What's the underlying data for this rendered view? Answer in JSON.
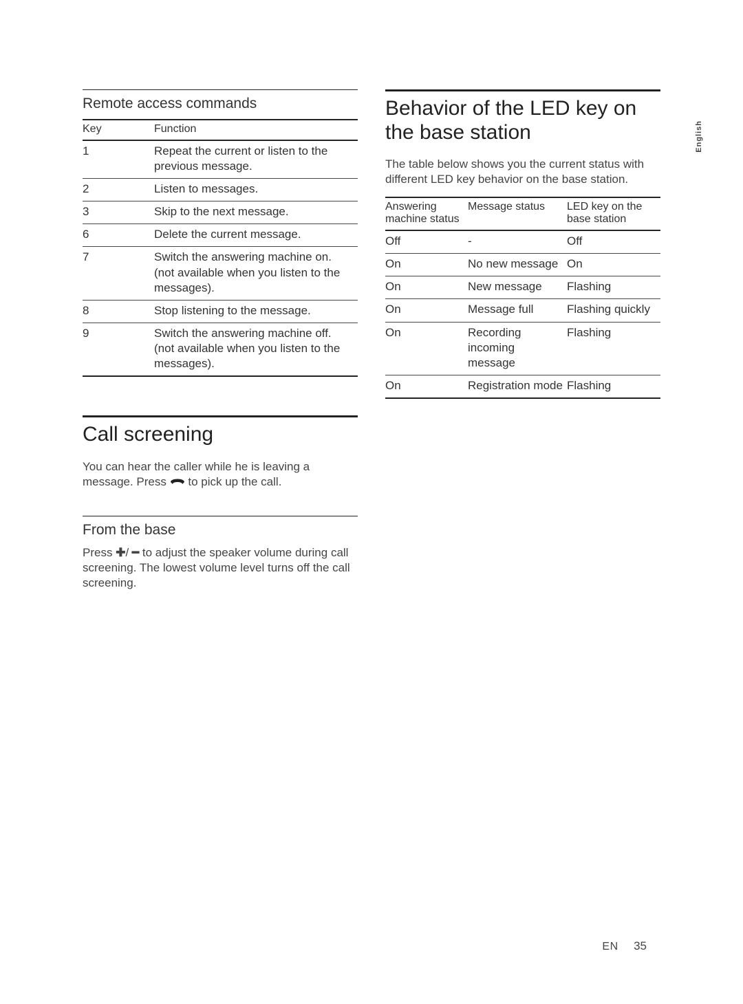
{
  "side_tab": "English",
  "left": {
    "remote_access": {
      "title": "Remote access commands",
      "columns": [
        "Key",
        "Function"
      ],
      "rows": [
        [
          "1",
          "Repeat the current or listen to the previous message."
        ],
        [
          "2",
          "Listen to messages."
        ],
        [
          "3",
          "Skip to the next message."
        ],
        [
          "6",
          "Delete the current message."
        ],
        [
          "7",
          "Switch the answering machine on.\n(not available when you listen to the messages)."
        ],
        [
          "8",
          "Stop listening to the message."
        ],
        [
          "9",
          "Switch the answering machine off.\n(not available when you listen to the messages)."
        ]
      ]
    },
    "call_screening": {
      "title": "Call screening",
      "intro_pre": "You can hear the caller while he is leaving a message. Press ",
      "intro_post": " to pick up the call.",
      "from_base": {
        "title": "From the base",
        "body_pre": "Press ",
        "body_mid": " to adjust the speaker volume during call screening. The lowest volume level turns off the call screening."
      }
    }
  },
  "right": {
    "led": {
      "title": "Behavior of the LED key on the base station",
      "intro": "The table below shows you the current status with different LED key behavior on the base station.",
      "columns": [
        "Answering machine status",
        "Message status",
        "LED key on the base station"
      ],
      "rows": [
        [
          "Off",
          "-",
          "Off"
        ],
        [
          "On",
          "No new message",
          "On"
        ],
        [
          "On",
          "New message",
          "Flashing"
        ],
        [
          "On",
          "Message full",
          "Flashing quickly"
        ],
        [
          "On",
          "Recording incoming message",
          "Flashing"
        ],
        [
          "On",
          "Registration mode",
          "Flashing"
        ]
      ]
    }
  },
  "footer": {
    "lang": "EN",
    "page": "35"
  },
  "symbols": {
    "plus": "✚",
    "minus": "━",
    "slash": "/"
  }
}
